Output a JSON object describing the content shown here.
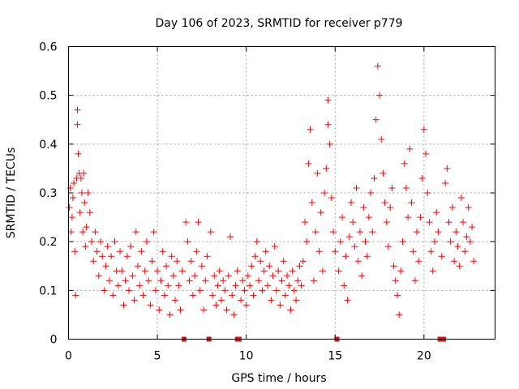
{
  "chart_data": {
    "type": "scatter",
    "title": "Day 106 of 2023, SRMTID for receiver p779",
    "xlabel": "GPS time / hours",
    "ylabel": "SRMTID / TECUs",
    "xlim": [
      0,
      24
    ],
    "ylim": [
      0,
      0.6
    ],
    "xticks": [
      0,
      5,
      10,
      15,
      20
    ],
    "xtick_labels": [
      "0",
      "5",
      "10",
      "15",
      "20"
    ],
    "yticks": [
      0,
      0.1,
      0.2,
      0.3,
      0.4,
      0.5,
      0.6
    ],
    "ytick_labels": [
      "0",
      "0.1",
      "0.2",
      "0.3",
      "0.4",
      "0.5",
      "0.6"
    ],
    "grid": true,
    "marker": "+",
    "series_color": "#ff0000",
    "zero_markers_x": [
      6.5,
      7.9,
      9.5,
      9.6,
      15.1,
      20.9,
      21.0,
      21.1
    ],
    "points": [
      [
        0.05,
        0.27
      ],
      [
        0.1,
        0.31
      ],
      [
        0.15,
        0.22
      ],
      [
        0.2,
        0.25
      ],
      [
        0.25,
        0.29
      ],
      [
        0.3,
        0.32
      ],
      [
        0.35,
        0.18
      ],
      [
        0.4,
        0.09
      ],
      [
        0.45,
        0.33
      ],
      [
        0.5,
        0.47
      ],
      [
        0.5,
        0.44
      ],
      [
        0.55,
        0.38
      ],
      [
        0.6,
        0.34
      ],
      [
        0.65,
        0.26
      ],
      [
        0.7,
        0.33
      ],
      [
        0.75,
        0.3
      ],
      [
        0.8,
        0.22
      ],
      [
        0.85,
        0.34
      ],
      [
        0.9,
        0.28
      ],
      [
        0.95,
        0.19
      ],
      [
        1.0,
        0.23
      ],
      [
        1.1,
        0.3
      ],
      [
        1.2,
        0.26
      ],
      [
        1.3,
        0.2
      ],
      [
        1.4,
        0.16
      ],
      [
        1.5,
        0.22
      ],
      [
        1.6,
        0.18
      ],
      [
        1.7,
        0.13
      ],
      [
        1.8,
        0.2
      ],
      [
        1.9,
        0.17
      ],
      [
        2.0,
        0.1
      ],
      [
        2.1,
        0.15
      ],
      [
        2.2,
        0.19
      ],
      [
        2.3,
        0.12
      ],
      [
        2.4,
        0.17
      ],
      [
        2.5,
        0.09
      ],
      [
        2.6,
        0.2
      ],
      [
        2.7,
        0.14
      ],
      [
        2.8,
        0.11
      ],
      [
        2.9,
        0.18
      ],
      [
        3.0,
        0.14
      ],
      [
        3.1,
        0.07
      ],
      [
        3.2,
        0.12
      ],
      [
        3.3,
        0.17
      ],
      [
        3.4,
        0.1
      ],
      [
        3.5,
        0.19
      ],
      [
        3.6,
        0.13
      ],
      [
        3.7,
        0.08
      ],
      [
        3.8,
        0.22
      ],
      [
        3.9,
        0.15
      ],
      [
        4.0,
        0.11
      ],
      [
        4.1,
        0.18
      ],
      [
        4.2,
        0.09
      ],
      [
        4.3,
        0.14
      ],
      [
        4.4,
        0.2
      ],
      [
        4.5,
        0.12
      ],
      [
        4.6,
        0.07
      ],
      [
        4.7,
        0.16
      ],
      [
        4.8,
        0.22
      ],
      [
        4.9,
        0.1
      ],
      [
        5.0,
        0.14
      ],
      [
        5.1,
        0.06
      ],
      [
        5.2,
        0.12
      ],
      [
        5.3,
        0.18
      ],
      [
        5.4,
        0.09
      ],
      [
        5.5,
        0.15
      ],
      [
        5.6,
        0.11
      ],
      [
        5.7,
        0.05
      ],
      [
        5.8,
        0.17
      ],
      [
        5.9,
        0.13
      ],
      [
        6.0,
        0.08
      ],
      [
        6.1,
        0.16
      ],
      [
        6.2,
        0.11
      ],
      [
        6.3,
        0.06
      ],
      [
        6.4,
        0.14
      ],
      [
        6.6,
        0.24
      ],
      [
        6.7,
        0.2
      ],
      [
        6.8,
        0.12
      ],
      [
        6.9,
        0.16
      ],
      [
        7.0,
        0.09
      ],
      [
        7.1,
        0.13
      ],
      [
        7.2,
        0.18
      ],
      [
        7.3,
        0.24
      ],
      [
        7.4,
        0.1
      ],
      [
        7.5,
        0.15
      ],
      [
        7.6,
        0.06
      ],
      [
        7.7,
        0.12
      ],
      [
        7.8,
        0.17
      ],
      [
        8.0,
        0.22
      ],
      [
        8.1,
        0.09
      ],
      [
        8.2,
        0.13
      ],
      [
        8.3,
        0.07
      ],
      [
        8.4,
        0.11
      ],
      [
        8.5,
        0.14
      ],
      [
        8.6,
        0.08
      ],
      [
        8.7,
        0.12
      ],
      [
        8.8,
        0.1
      ],
      [
        8.9,
        0.06
      ],
      [
        9.0,
        0.13
      ],
      [
        9.1,
        0.21
      ],
      [
        9.2,
        0.09
      ],
      [
        9.3,
        0.05
      ],
      [
        9.4,
        0.11
      ],
      [
        9.5,
        0.14
      ],
      [
        9.7,
        0.08
      ],
      [
        9.8,
        0.12
      ],
      [
        9.9,
        0.1
      ],
      [
        10.0,
        0.07
      ],
      [
        10.1,
        0.13
      ],
      [
        10.2,
        0.11
      ],
      [
        10.3,
        0.15
      ],
      [
        10.4,
        0.09
      ],
      [
        10.5,
        0.17
      ],
      [
        10.6,
        0.2
      ],
      [
        10.7,
        0.12
      ],
      [
        10.8,
        0.16
      ],
      [
        10.9,
        0.1
      ],
      [
        11.0,
        0.14
      ],
      [
        11.1,
        0.18
      ],
      [
        11.2,
        0.11
      ],
      [
        11.3,
        0.15
      ],
      [
        11.4,
        0.08
      ],
      [
        11.5,
        0.13
      ],
      [
        11.6,
        0.19
      ],
      [
        11.7,
        0.1
      ],
      [
        11.8,
        0.14
      ],
      [
        11.9,
        0.07
      ],
      [
        12.0,
        0.12
      ],
      [
        12.1,
        0.16
      ],
      [
        12.2,
        0.09
      ],
      [
        12.3,
        0.13
      ],
      [
        12.4,
        0.11
      ],
      [
        12.5,
        0.06
      ],
      [
        12.6,
        0.14
      ],
      [
        12.7,
        0.1
      ],
      [
        12.8,
        0.08
      ],
      [
        12.9,
        0.12
      ],
      [
        13.0,
        0.15
      ],
      [
        13.1,
        0.11
      ],
      [
        13.2,
        0.16
      ],
      [
        13.3,
        0.24
      ],
      [
        13.4,
        0.2
      ],
      [
        13.5,
        0.36
      ],
      [
        13.6,
        0.43
      ],
      [
        13.7,
        0.28
      ],
      [
        13.8,
        0.12
      ],
      [
        13.9,
        0.22
      ],
      [
        14.0,
        0.34
      ],
      [
        14.1,
        0.18
      ],
      [
        14.2,
        0.26
      ],
      [
        14.3,
        0.14
      ],
      [
        14.4,
        0.3
      ],
      [
        14.5,
        0.35
      ],
      [
        14.6,
        0.49
      ],
      [
        14.6,
        0.44
      ],
      [
        14.7,
        0.4
      ],
      [
        14.8,
        0.29
      ],
      [
        14.9,
        0.22
      ],
      [
        15.0,
        0.18
      ],
      [
        15.2,
        0.14
      ],
      [
        15.3,
        0.2
      ],
      [
        15.4,
        0.25
      ],
      [
        15.5,
        0.11
      ],
      [
        15.6,
        0.17
      ],
      [
        15.7,
        0.08
      ],
      [
        15.8,
        0.21
      ],
      [
        15.9,
        0.28
      ],
      [
        16.0,
        0.24
      ],
      [
        16.1,
        0.19
      ],
      [
        16.2,
        0.31
      ],
      [
        16.3,
        0.16
      ],
      [
        16.4,
        0.22
      ],
      [
        16.5,
        0.13
      ],
      [
        16.6,
        0.27
      ],
      [
        16.7,
        0.2
      ],
      [
        16.8,
        0.17
      ],
      [
        16.9,
        0.25
      ],
      [
        17.0,
        0.3
      ],
      [
        17.1,
        0.22
      ],
      [
        17.2,
        0.33
      ],
      [
        17.3,
        0.45
      ],
      [
        17.4,
        0.56
      ],
      [
        17.5,
        0.5
      ],
      [
        17.6,
        0.41
      ],
      [
        17.7,
        0.34
      ],
      [
        17.8,
        0.28
      ],
      [
        17.9,
        0.24
      ],
      [
        18.0,
        0.19
      ],
      [
        18.1,
        0.27
      ],
      [
        18.2,
        0.31
      ],
      [
        18.3,
        0.15
      ],
      [
        18.4,
        0.12
      ],
      [
        18.5,
        0.09
      ],
      [
        18.6,
        0.05
      ],
      [
        18.7,
        0.14
      ],
      [
        18.8,
        0.2
      ],
      [
        18.9,
        0.36
      ],
      [
        19.0,
        0.31
      ],
      [
        19.1,
        0.25
      ],
      [
        19.2,
        0.39
      ],
      [
        19.3,
        0.28
      ],
      [
        19.4,
        0.18
      ],
      [
        19.5,
        0.12
      ],
      [
        19.6,
        0.22
      ],
      [
        19.7,
        0.16
      ],
      [
        19.8,
        0.25
      ],
      [
        19.9,
        0.33
      ],
      [
        20.0,
        0.43
      ],
      [
        20.1,
        0.38
      ],
      [
        20.2,
        0.3
      ],
      [
        20.3,
        0.24
      ],
      [
        20.4,
        0.18
      ],
      [
        20.5,
        0.14
      ],
      [
        20.6,
        0.2
      ],
      [
        20.7,
        0.26
      ],
      [
        20.8,
        0.22
      ],
      [
        21.0,
        0.17
      ],
      [
        21.2,
        0.32
      ],
      [
        21.3,
        0.35
      ],
      [
        21.4,
        0.24
      ],
      [
        21.5,
        0.2
      ],
      [
        21.6,
        0.27
      ],
      [
        21.7,
        0.16
      ],
      [
        21.8,
        0.22
      ],
      [
        21.9,
        0.19
      ],
      [
        22.0,
        0.15
      ],
      [
        22.1,
        0.29
      ],
      [
        22.2,
        0.24
      ],
      [
        22.3,
        0.18
      ],
      [
        22.4,
        0.21
      ],
      [
        22.5,
        0.27
      ],
      [
        22.6,
        0.2
      ],
      [
        22.7,
        0.23
      ],
      [
        22.8,
        0.16
      ]
    ]
  }
}
